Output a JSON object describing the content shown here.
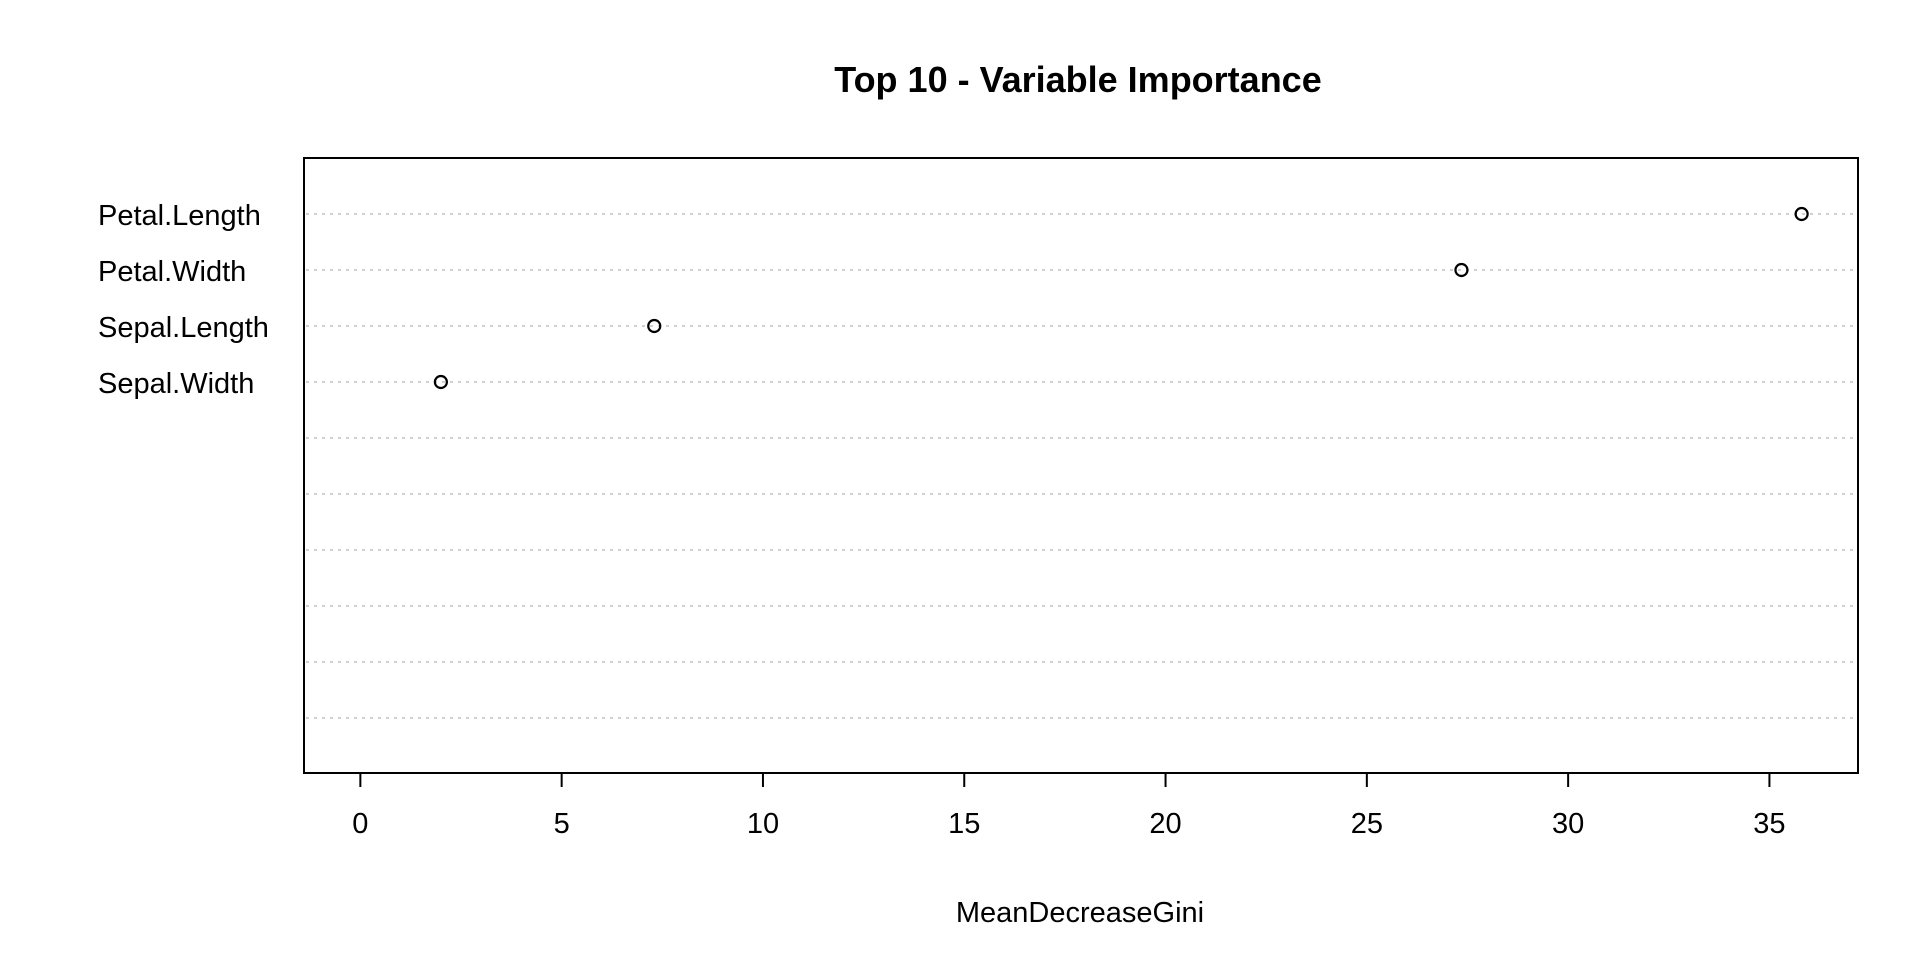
{
  "chart_data": {
    "type": "scatter",
    "title": "Top 10 - Variable Importance",
    "xlabel": "MeanDecreaseGini",
    "ylabel": "",
    "xlim": [
      -1.4,
      37.2
    ],
    "xticks": [
      0,
      5,
      10,
      15,
      20,
      25,
      30,
      35
    ],
    "categories": [
      "Petal.Length",
      "Petal.Width",
      "Sepal.Length",
      "Sepal.Width"
    ],
    "values": [
      35.8,
      27.35,
      7.3,
      2.0
    ],
    "grid_rows": 10,
    "grid": true,
    "legend": "none"
  }
}
